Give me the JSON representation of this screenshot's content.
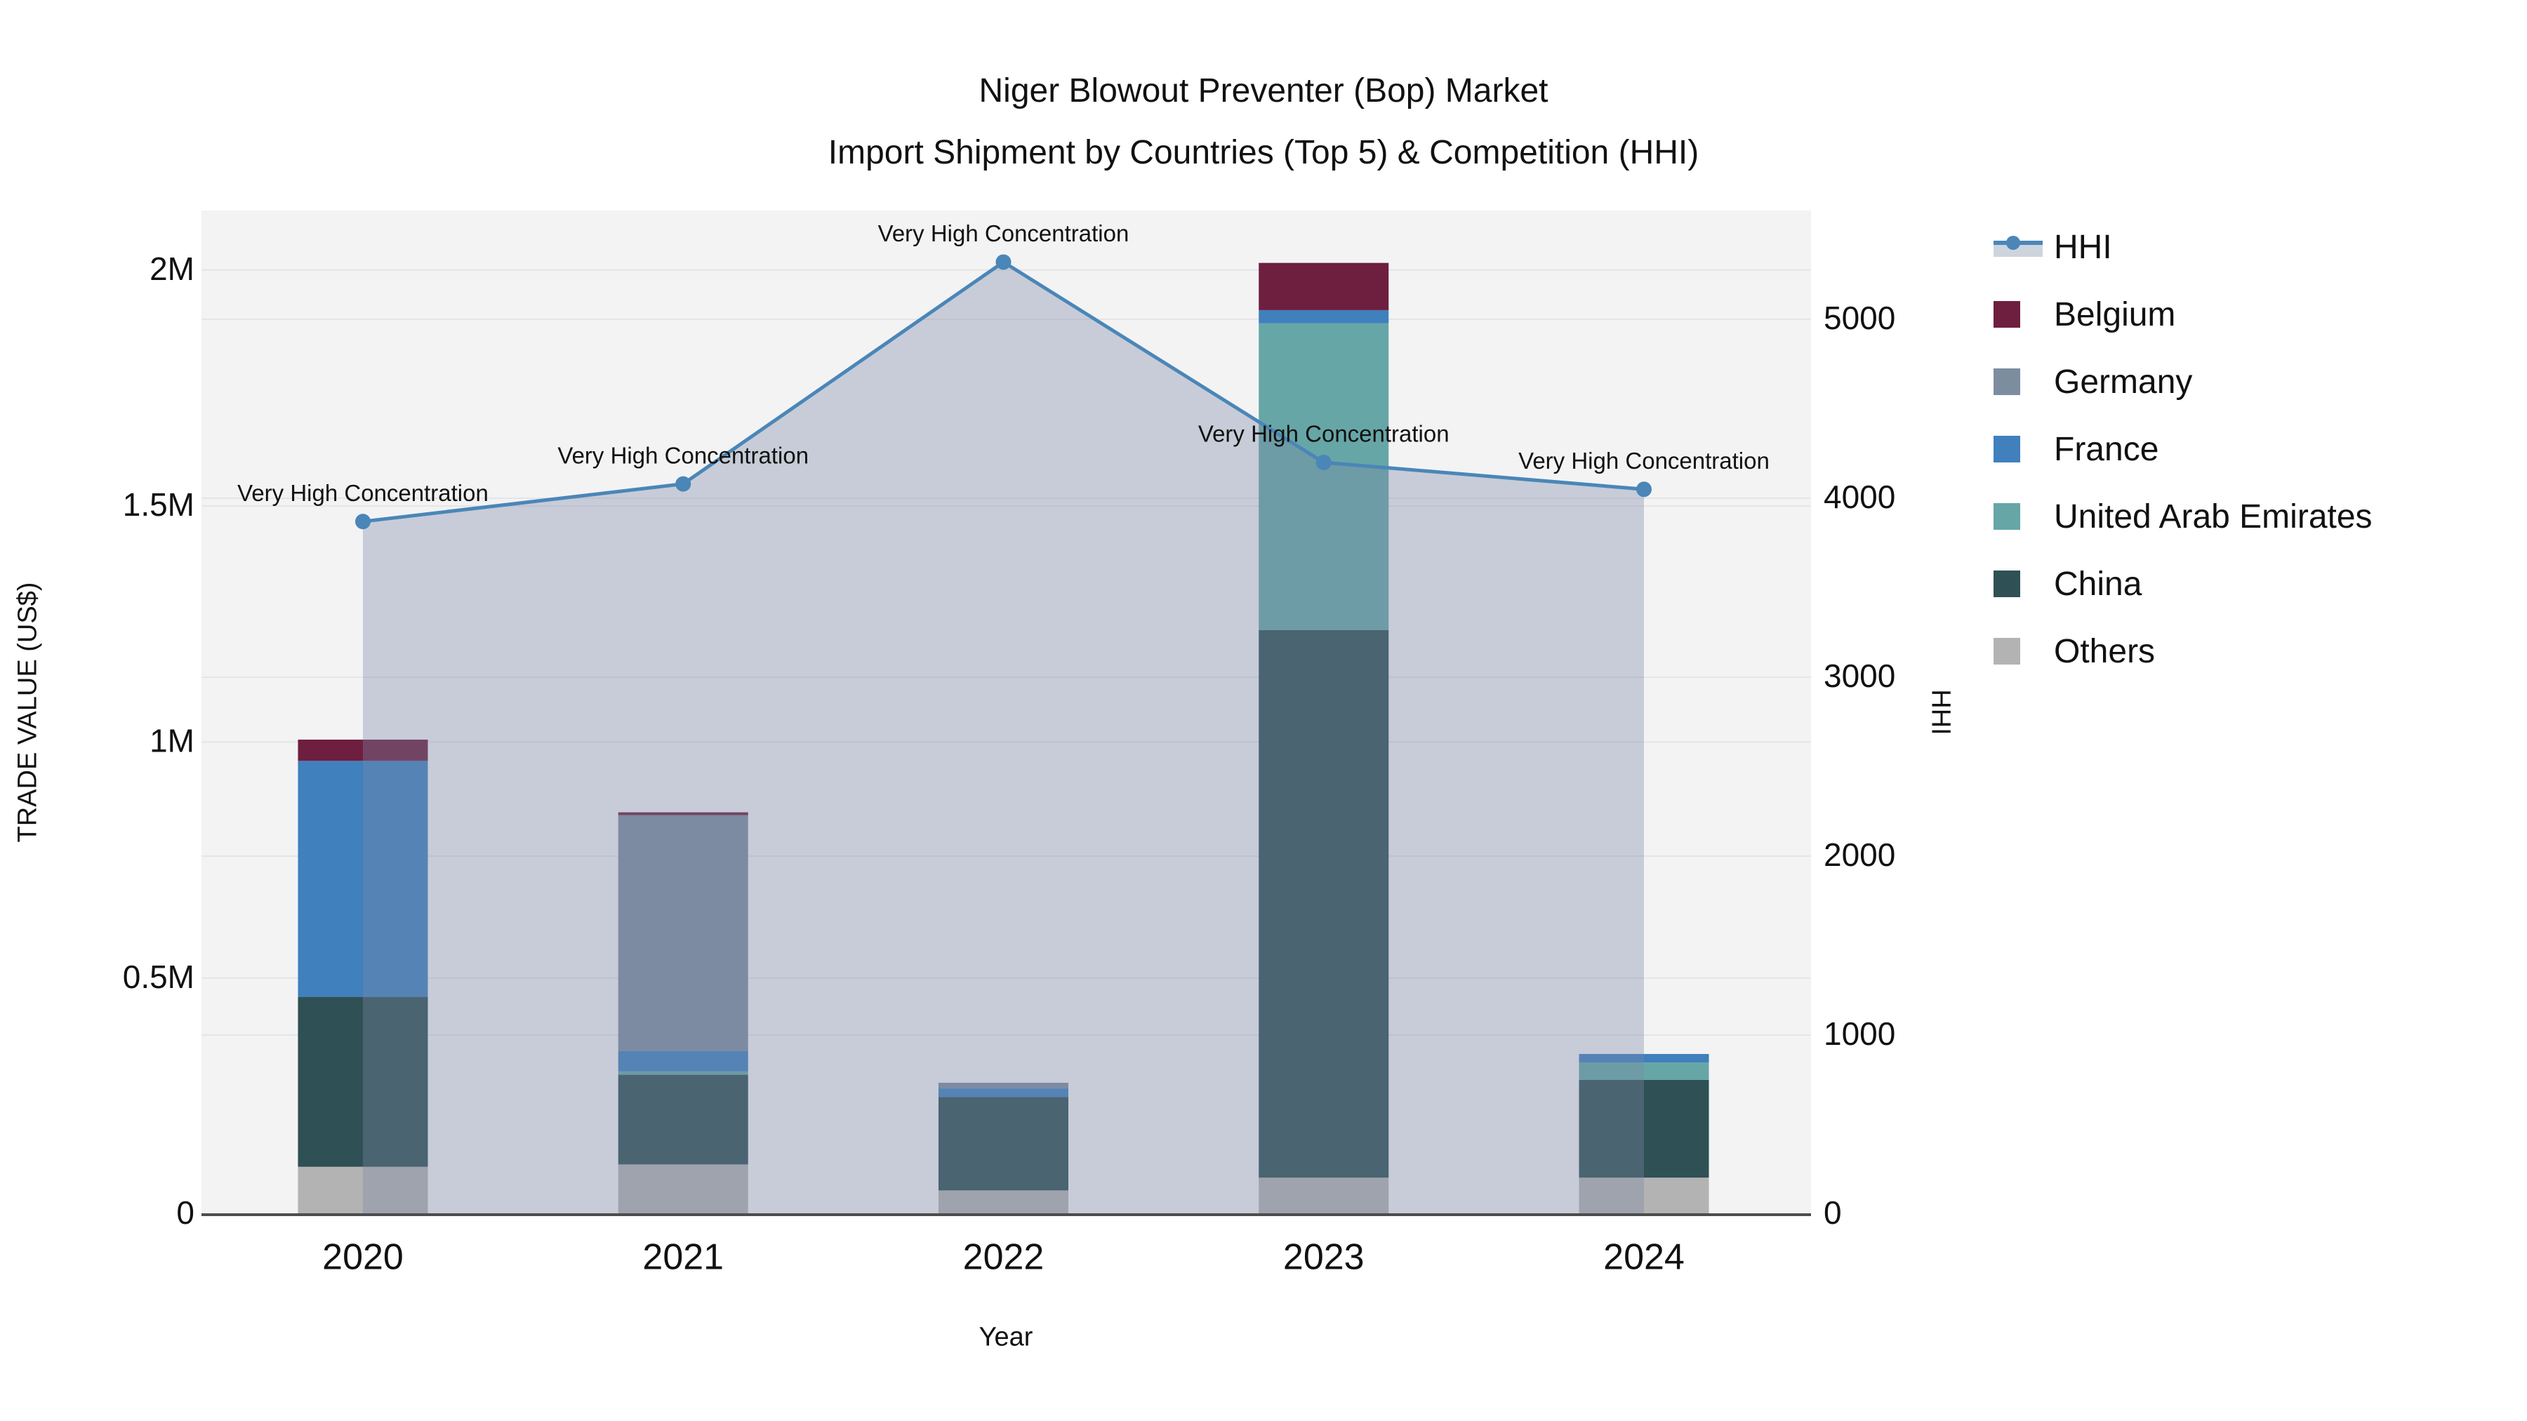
{
  "title": {
    "line1": "Niger Blowout Preventer (Bop) Market",
    "line2": "Import Shipment by Countries (Top 5) & Competition (HHI)"
  },
  "axis_titles": {
    "left": "TRADE VALUE (US$)",
    "right": "HHI",
    "x": "Year"
  },
  "legend": [
    {
      "label": "HHI",
      "type": "line",
      "line_color": "#4a86b8",
      "fill_color": "#cdd4de"
    },
    {
      "label": "Belgium",
      "type": "swatch",
      "color": "#6e1e3f"
    },
    {
      "label": "Germany",
      "type": "swatch",
      "color": "#7d8da0"
    },
    {
      "label": "France",
      "type": "swatch",
      "color": "#4080bd"
    },
    {
      "label": "United Arab Emirates",
      "type": "swatch",
      "color": "#67a6a6"
    },
    {
      "label": "China",
      "type": "swatch",
      "color": "#2f5054"
    },
    {
      "label": "Others",
      "type": "swatch",
      "color": "#b3b3b3"
    }
  ],
  "chart_data": {
    "type": "combo-stacked-bar-line-area",
    "title": "Niger Blowout Preventer (Bop) Market Import Shipment by Countries (Top 5) & Competition (HHI)",
    "categories": [
      "2020",
      "2021",
      "2022",
      "2023",
      "2024"
    ],
    "bar_series": [
      {
        "name": "Others",
        "color": "#b3b3b3",
        "values": [
          100000,
          105000,
          50000,
          77000,
          77000
        ]
      },
      {
        "name": "China",
        "color": "#2f5054",
        "values": [
          360000,
          190000,
          198000,
          1160000,
          207000
        ]
      },
      {
        "name": "United Arab Emirates",
        "color": "#67a6a6",
        "values": [
          0,
          7000,
          0,
          650000,
          37000
        ]
      },
      {
        "name": "France",
        "color": "#4080bd",
        "values": [
          500000,
          43000,
          18000,
          28000,
          18000
        ]
      },
      {
        "name": "Germany",
        "color": "#7d8da0",
        "values": [
          0,
          500000,
          12000,
          0,
          0
        ]
      },
      {
        "name": "Belgium",
        "color": "#6e1e3f",
        "values": [
          45000,
          6000,
          0,
          100000,
          0
        ]
      }
    ],
    "stack_order": "bottom-to-top",
    "line_series": {
      "name": "HHI",
      "axis": "right",
      "color": "#4a86b8",
      "area_fill": "rgba(123,137,166,0.36)",
      "values": [
        3870,
        4080,
        5320,
        4200,
        4050
      ],
      "annotation": "Very High Concentration"
    },
    "left_axis": {
      "label": "TRADE VALUE (US$)",
      "range": [
        0,
        2126000
      ],
      "ticks": [
        0,
        500000,
        1000000,
        1500000,
        2000000
      ],
      "tick_labels": [
        "0",
        "0.5M",
        "1M",
        "1.5M",
        "2M"
      ]
    },
    "right_axis": {
      "label": "HHI",
      "range": [
        0,
        5608
      ],
      "ticks": [
        0,
        1000,
        2000,
        3000,
        4000,
        5000
      ],
      "tick_labels": [
        "0",
        "1000",
        "2000",
        "3000",
        "4000",
        "5000"
      ]
    },
    "x_axis": {
      "label": "Year"
    },
    "grid": true,
    "legend_position": "right",
    "plot_background": "#f3f3f4"
  }
}
